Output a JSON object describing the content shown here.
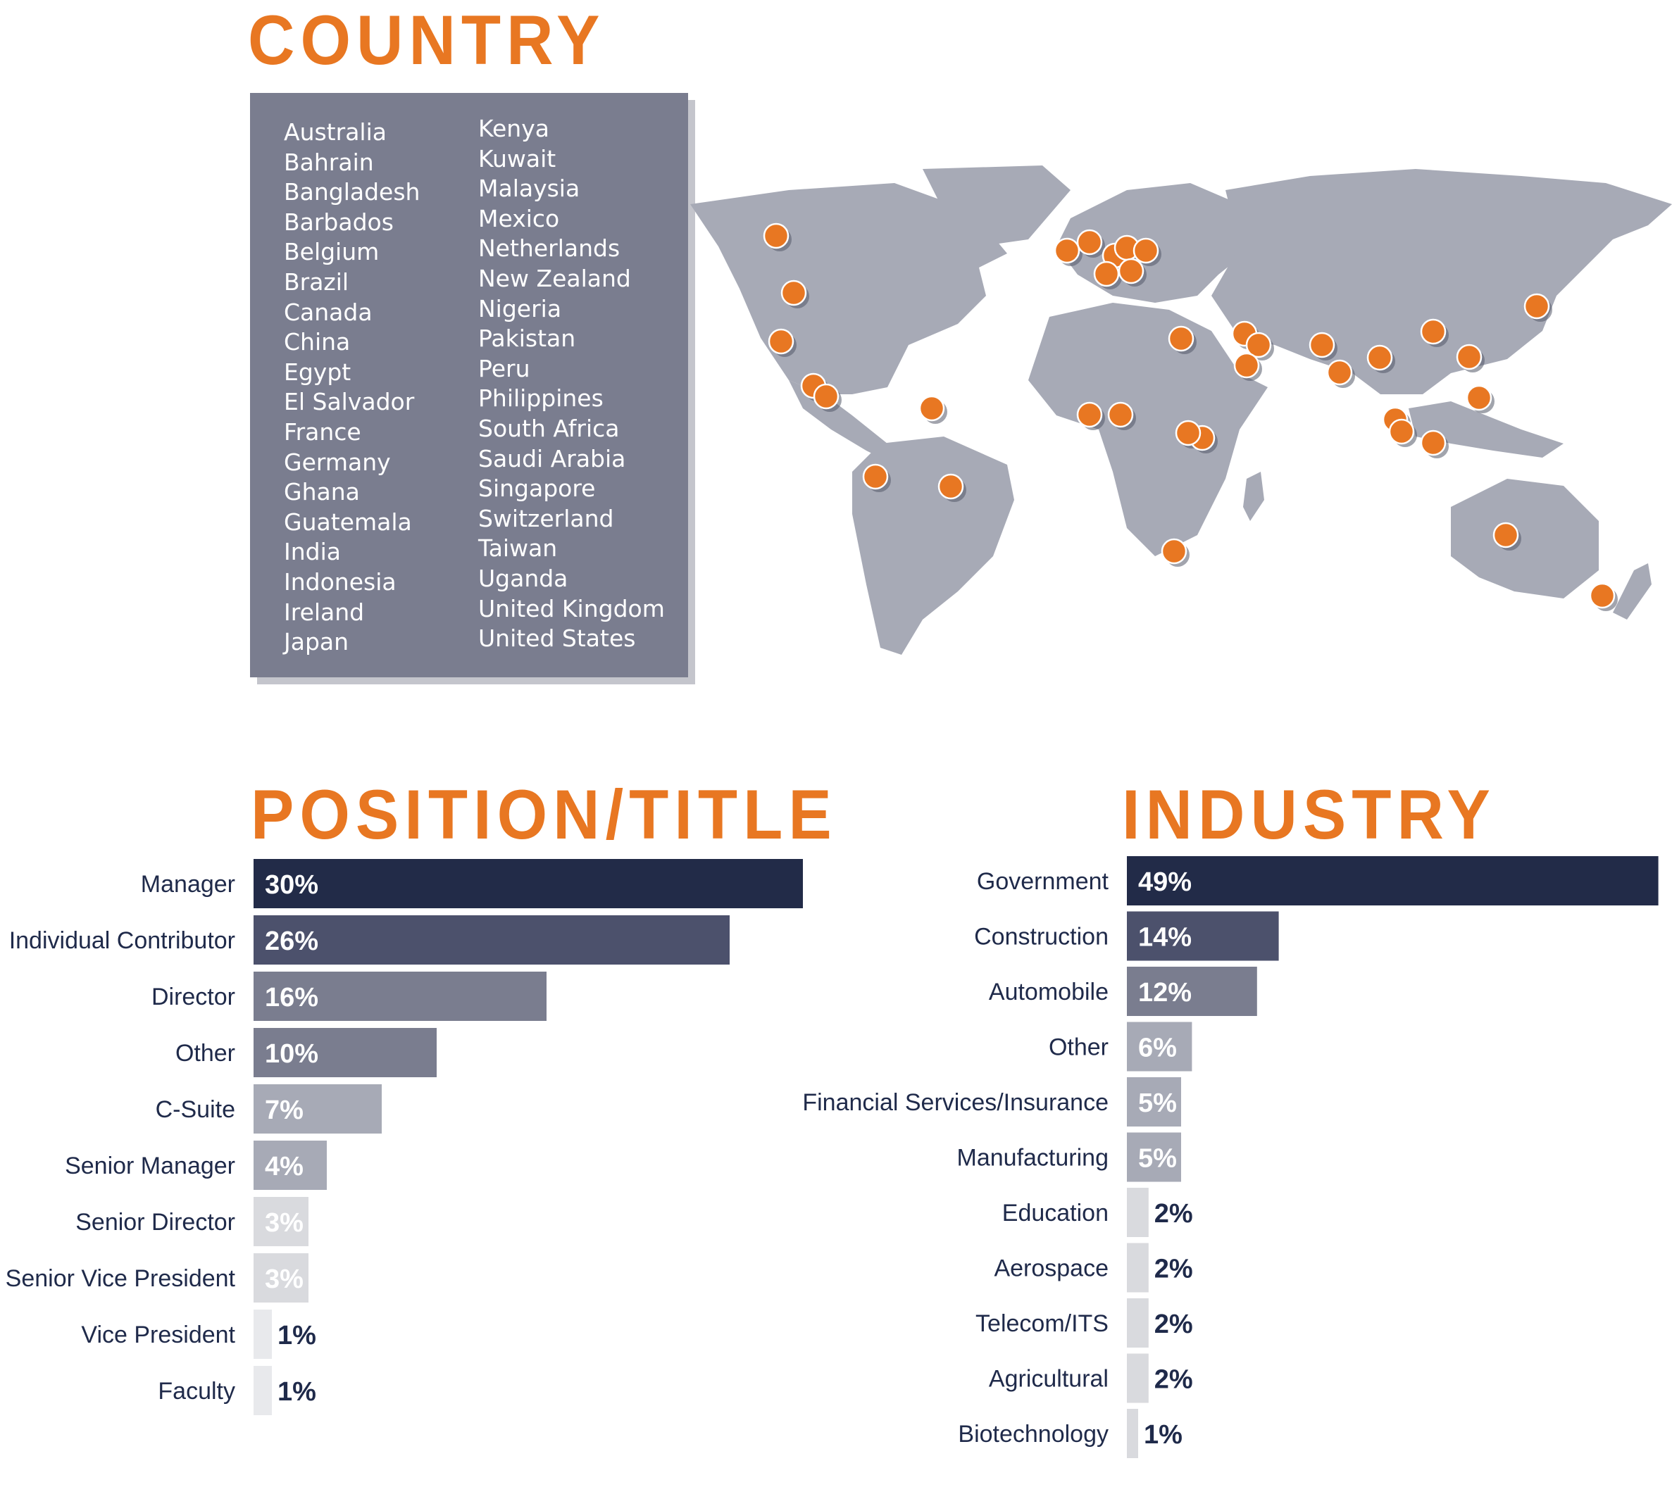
{
  "headings": {
    "country": "COUNTRY",
    "position": "POSITION/TITLE",
    "industry": "INDUSTRY"
  },
  "countries_col1": [
    "Australia",
    "Bahrain",
    "Bangladesh",
    "Barbados",
    "Belgium",
    "Brazil",
    "Canada",
    "China",
    "Egypt",
    "El Salvador",
    "France",
    "Germany",
    "Ghana",
    "Guatemala",
    "India",
    "Indonesia",
    "Ireland",
    "Japan"
  ],
  "countries_col2": [
    "Kenya",
    "Kuwait",
    "Malaysia",
    "Mexico",
    "Netherlands",
    "New Zealand",
    "Nigeria",
    "Pakistan",
    "Peru",
    "Philippines",
    "South Africa",
    "Saudi Arabia",
    "Singapore",
    "Switzerland",
    "Taiwan",
    "Uganda",
    "United Kingdom",
    "United States"
  ],
  "colors": {
    "accent": "#e87722",
    "panel": "#7a7d8f",
    "map_land": "#a7aab6",
    "marker": "#e87722",
    "bar_shades": [
      "#222b48",
      "#4c516c",
      "#7a7d8f",
      "#a7aab6",
      "#d9dade",
      "#e8e9ec"
    ]
  },
  "chart_data": [
    {
      "type": "bar",
      "orientation": "horizontal",
      "title": "POSITION/TITLE",
      "categories": [
        "Manager",
        "Individual Contributor",
        "Director",
        "Other",
        "C-Suite",
        "Senior Manager",
        "Senior Director",
        "Senior Vice President",
        "Vice President",
        "Faculty"
      ],
      "values": [
        30,
        26,
        16,
        10,
        7,
        4,
        3,
        3,
        1,
        1
      ],
      "labels": [
        "30%",
        "26%",
        "16%",
        "10%",
        "7%",
        "4%",
        "3%",
        "3%",
        "1%",
        "1%"
      ],
      "unit": "%"
    },
    {
      "type": "bar",
      "orientation": "horizontal",
      "title": "INDUSTRY",
      "categories": [
        "Government",
        "Construction",
        "Automobile",
        "Other",
        "Financial Services/Insurance",
        "Manufacturing",
        "Education",
        "Aerospace",
        "Telecom/ITS",
        "Agricultural",
        "Biotechnology"
      ],
      "values": [
        49,
        14,
        12,
        6,
        5,
        5,
        2,
        2,
        2,
        2,
        1
      ],
      "labels": [
        "49%",
        "14%",
        "12%",
        "6%",
        "5%",
        "5%",
        "2%",
        "2%",
        "2%",
        "2%",
        "1%"
      ],
      "unit": "%"
    }
  ]
}
